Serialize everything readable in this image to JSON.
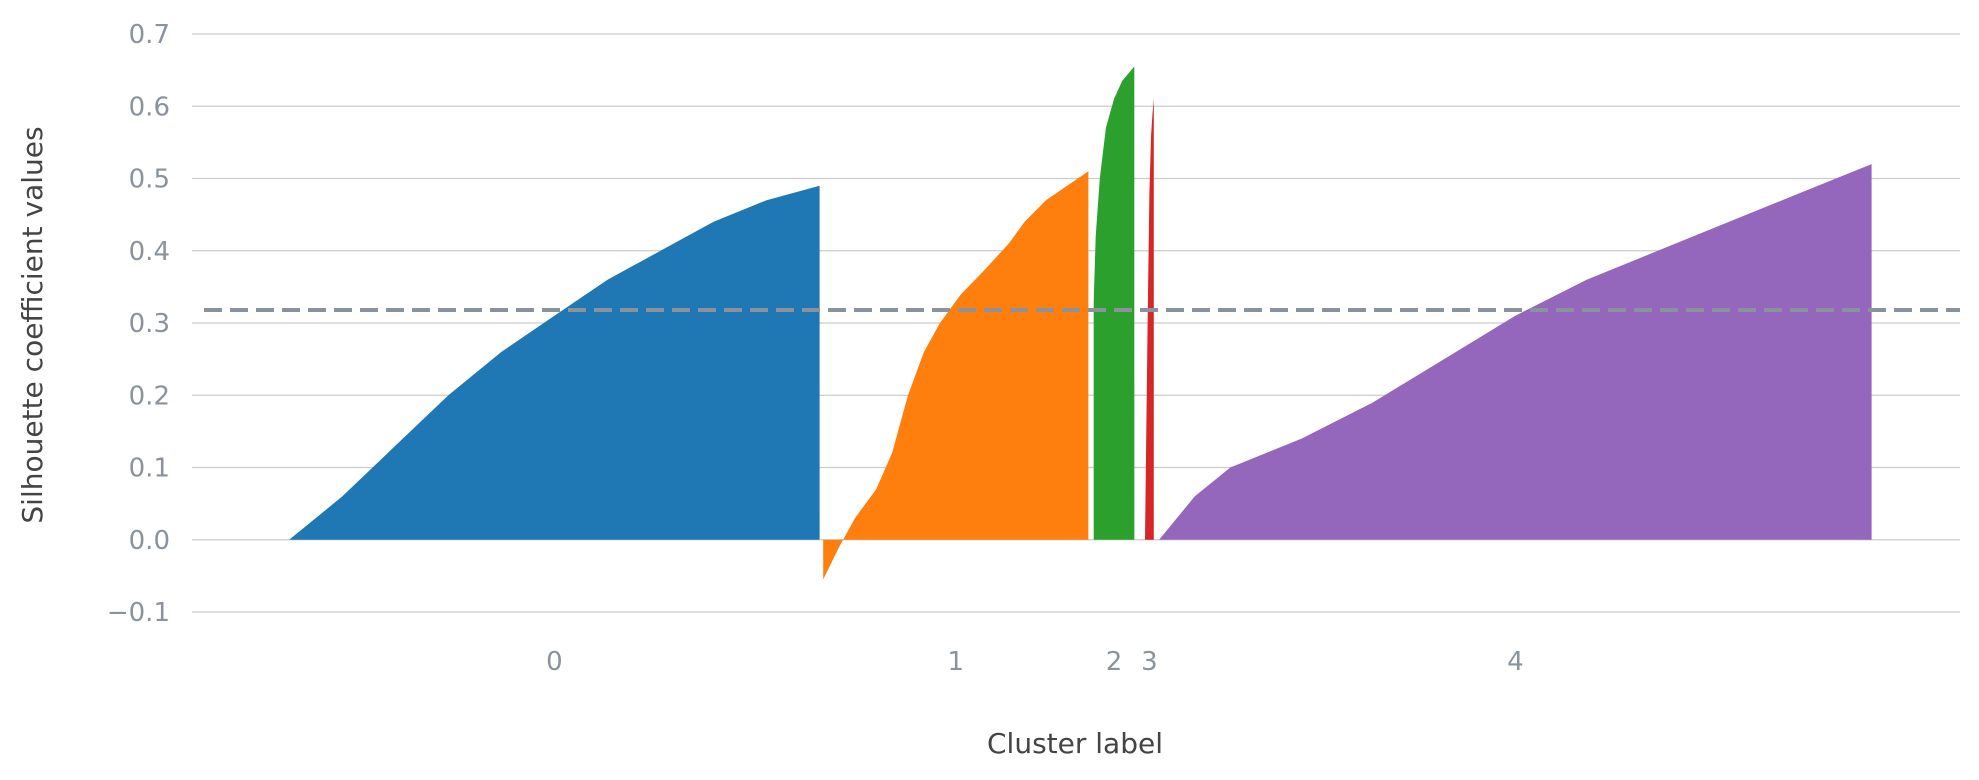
{
  "chart_data": {
    "type": "area",
    "title": "",
    "xlabel": "Cluster label",
    "ylabel": "Silhouette coefficient values",
    "ylim": [
      -0.1,
      0.7
    ],
    "xlim": [
      0,
      1000
    ],
    "yticks": [
      -0.1,
      0.0,
      0.1,
      0.2,
      0.3,
      0.4,
      0.5,
      0.6,
      0.7
    ],
    "ytick_labels": [
      "−0.1",
      "0.0",
      "0.1",
      "0.2",
      "0.3",
      "0.4",
      "0.5",
      "0.6",
      "0.7"
    ],
    "grid": "horizontal",
    "mean_silhouette": 0.318,
    "series": [
      {
        "label": "0",
        "color": "#1f77b4",
        "x_range": [
          55,
          355
        ],
        "profile": [
          [
            0,
            0.0
          ],
          [
            0.1,
            0.06
          ],
          [
            0.2,
            0.13
          ],
          [
            0.3,
            0.2
          ],
          [
            0.4,
            0.26
          ],
          [
            0.5,
            0.31
          ],
          [
            0.6,
            0.36
          ],
          [
            0.7,
            0.4
          ],
          [
            0.8,
            0.44
          ],
          [
            0.9,
            0.47
          ],
          [
            1.0,
            0.49
          ]
        ]
      },
      {
        "label": "1",
        "color": "#ff7f0e",
        "x_range": [
          357,
          507
        ],
        "profile": [
          [
            0,
            -0.055
          ],
          [
            0.06,
            -0.01
          ],
          [
            0.12,
            0.03
          ],
          [
            0.2,
            0.07
          ],
          [
            0.26,
            0.12
          ],
          [
            0.32,
            0.2
          ],
          [
            0.38,
            0.26
          ],
          [
            0.44,
            0.3
          ],
          [
            0.52,
            0.34
          ],
          [
            0.6,
            0.37
          ],
          [
            0.7,
            0.41
          ],
          [
            0.76,
            0.44
          ],
          [
            0.84,
            0.47
          ],
          [
            0.92,
            0.49
          ],
          [
            1.0,
            0.51
          ]
        ]
      },
      {
        "label": "2",
        "color": "#2ca02c",
        "x_range": [
          510,
          533
        ],
        "profile": [
          [
            0,
            0.33
          ],
          [
            0.05,
            0.42
          ],
          [
            0.15,
            0.5
          ],
          [
            0.3,
            0.57
          ],
          [
            0.5,
            0.61
          ],
          [
            0.7,
            0.635
          ],
          [
            0.85,
            0.645
          ],
          [
            1.0,
            0.655
          ]
        ]
      },
      {
        "label": "3",
        "color": "#d62728",
        "x_range": [
          539,
          544
        ],
        "profile": [
          [
            0,
            0.0
          ],
          [
            0.3,
            0.3
          ],
          [
            0.5,
            0.48
          ],
          [
            0.7,
            0.56
          ],
          [
            0.85,
            0.59
          ],
          [
            1.0,
            0.61
          ]
        ]
      },
      {
        "label": "4",
        "color": "#9467bd",
        "x_range": [
          547,
          950
        ],
        "profile": [
          [
            0,
            0.0
          ],
          [
            0.05,
            0.06
          ],
          [
            0.1,
            0.1
          ],
          [
            0.2,
            0.14
          ],
          [
            0.3,
            0.19
          ],
          [
            0.4,
            0.25
          ],
          [
            0.5,
            0.31
          ],
          [
            0.6,
            0.36
          ],
          [
            0.7,
            0.4
          ],
          [
            0.8,
            0.44
          ],
          [
            0.9,
            0.48
          ],
          [
            1.0,
            0.52
          ]
        ]
      }
    ]
  }
}
